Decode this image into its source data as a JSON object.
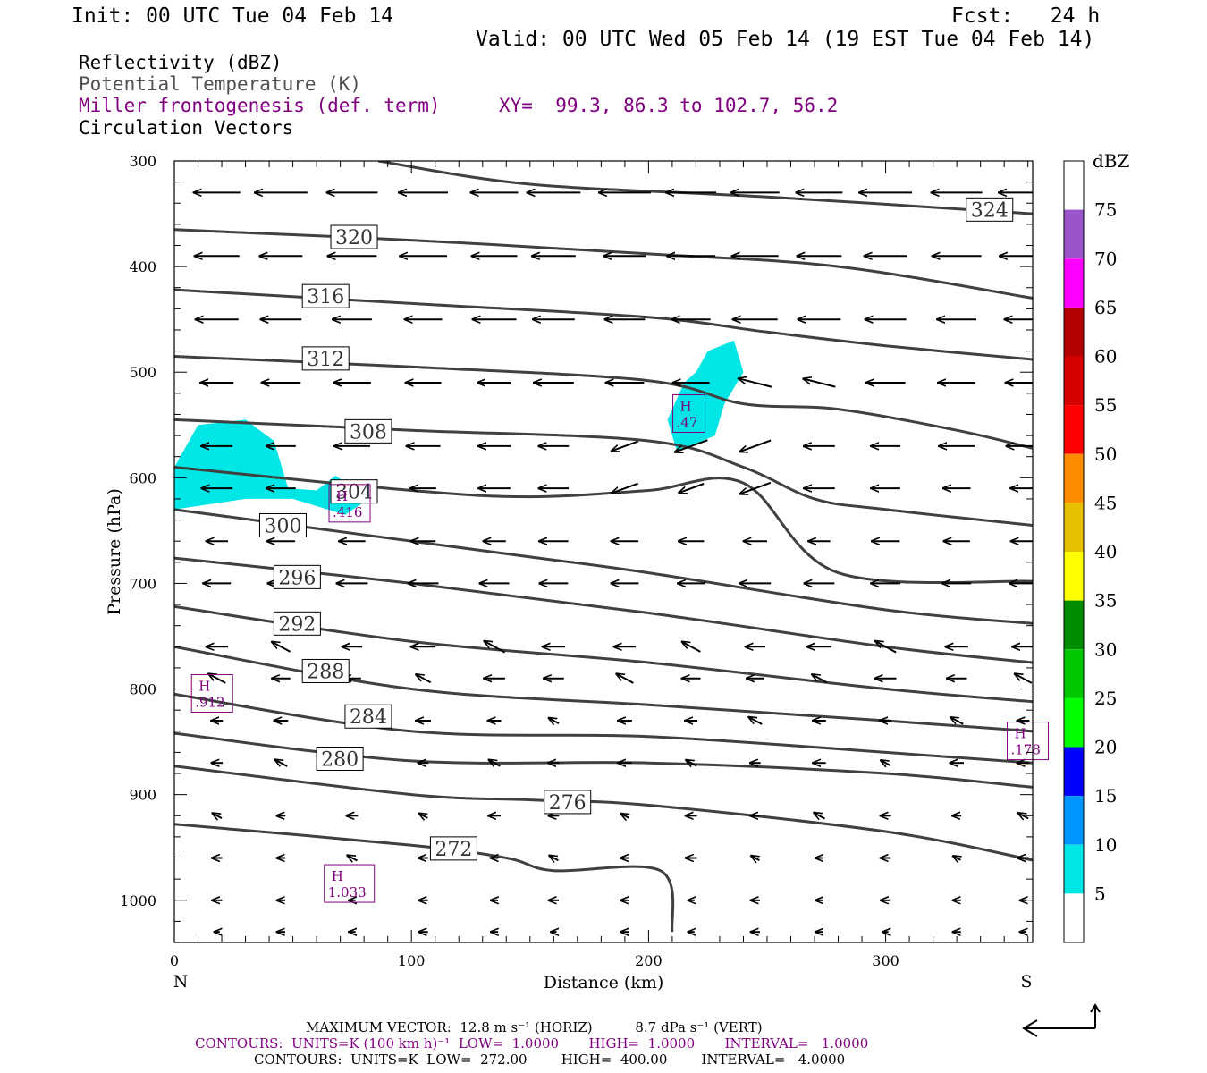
{
  "header": {
    "init": "Init: 00 UTC Tue 04 Feb 14",
    "fcst": "Fcst:   24 h",
    "valid": "Valid: 00 UTC Wed 05 Feb 14 (19 EST Tue 04 Feb 14)"
  },
  "legend": {
    "reflectivity": "Reflectivity (dBZ)",
    "theta": "Potential Temperature (K)",
    "frontogenesis": "Miller frontogenesis (def. term)",
    "xy": "XY=  99.3, 86.3 to 102.7, 56.2",
    "vectors": "Circulation Vectors"
  },
  "colors": {
    "theta_contour": "#404040",
    "frontogenesis": "#800080",
    "reflectivity_5": "#00e5e5"
  },
  "chart_data": {
    "type": "contour",
    "xlabel": "Distance (km)",
    "ylabel": "Pressure (hPa)",
    "xlim": [
      0,
      362
    ],
    "ylim": [
      1040,
      300
    ],
    "x_ticks": [
      0,
      100,
      200,
      300
    ],
    "y_ticks": [
      300,
      400,
      500,
      600,
      700,
      800,
      900,
      1000
    ],
    "left_end_label": "N",
    "right_end_label": "S",
    "theta_contours": [
      {
        "level": 324,
        "label": "324",
        "label_at": [
          334,
          346
        ],
        "points": [
          [
            86,
            300
          ],
          [
            150,
            322
          ],
          [
            250,
            334
          ],
          [
            362,
            350
          ]
        ]
      },
      {
        "level": 320,
        "label": "320",
        "label_at": [
          66,
          372
        ],
        "points": [
          [
            0,
            365
          ],
          [
            100,
            375
          ],
          [
            200,
            388
          ],
          [
            280,
            400
          ],
          [
            362,
            430
          ]
        ]
      },
      {
        "level": 316,
        "label": "316",
        "label_at": [
          54,
          428
        ],
        "points": [
          [
            0,
            422
          ],
          [
            100,
            435
          ],
          [
            200,
            448
          ],
          [
            250,
            462
          ],
          [
            300,
            475
          ],
          [
            362,
            488
          ]
        ]
      },
      {
        "level": 312,
        "label": "312",
        "label_at": [
          54,
          487
        ],
        "points": [
          [
            0,
            485
          ],
          [
            100,
            495
          ],
          [
            200,
            508
          ],
          [
            240,
            530
          ],
          [
            280,
            535
          ],
          [
            330,
            555
          ],
          [
            362,
            572
          ]
        ]
      },
      {
        "level": 308,
        "label": "308",
        "label_at": [
          72,
          556
        ],
        "points": [
          [
            0,
            545
          ],
          [
            100,
            555
          ],
          [
            200,
            565
          ],
          [
            240,
            590
          ],
          [
            270,
            620
          ],
          [
            300,
            630
          ],
          [
            362,
            645
          ]
        ]
      },
      {
        "level": 304,
        "label": "304",
        "label_at": [
          66,
          613
        ],
        "points": [
          [
            0,
            590
          ],
          [
            100,
            612
          ],
          [
            150,
            618
          ],
          [
            200,
            612
          ],
          [
            240,
            605
          ],
          [
            280,
            690
          ],
          [
            362,
            698
          ]
        ]
      },
      {
        "level": 300,
        "label": "300",
        "label_at": [
          36,
          645
        ],
        "points": [
          [
            0,
            630
          ],
          [
            100,
            660
          ],
          [
            150,
            675
          ],
          [
            200,
            690
          ],
          [
            300,
            725
          ],
          [
            362,
            738
          ]
        ]
      },
      {
        "level": 296,
        "label": "296",
        "label_at": [
          42,
          694
        ],
        "points": [
          [
            0,
            676
          ],
          [
            100,
            700
          ],
          [
            200,
            728
          ],
          [
            300,
            760
          ],
          [
            362,
            775
          ]
        ]
      },
      {
        "level": 292,
        "label": "292",
        "label_at": [
          42,
          738
        ],
        "points": [
          [
            0,
            722
          ],
          [
            100,
            755
          ],
          [
            200,
            775
          ],
          [
            300,
            800
          ],
          [
            362,
            812
          ]
        ]
      },
      {
        "level": 288,
        "label": "288",
        "label_at": [
          54,
          783
        ],
        "points": [
          [
            0,
            760
          ],
          [
            100,
            800
          ],
          [
            200,
            815
          ],
          [
            300,
            830
          ],
          [
            362,
            840
          ]
        ]
      },
      {
        "level": 284,
        "label": "284",
        "label_at": [
          72,
          826
        ],
        "points": [
          [
            0,
            805
          ],
          [
            100,
            840
          ],
          [
            200,
            845
          ],
          [
            300,
            860
          ],
          [
            362,
            870
          ]
        ]
      },
      {
        "level": 280,
        "label": "280",
        "label_at": [
          60,
          866
        ],
        "points": [
          [
            0,
            842
          ],
          [
            100,
            868
          ],
          [
            200,
            870
          ],
          [
            300,
            880
          ],
          [
            362,
            893
          ]
        ]
      },
      {
        "level": 276,
        "label": "276",
        "label_at": [
          156,
          907
        ],
        "points": [
          [
            0,
            873
          ],
          [
            100,
            900
          ],
          [
            150,
            905
          ],
          [
            200,
            910
          ],
          [
            300,
            935
          ],
          [
            362,
            962
          ]
        ]
      },
      {
        "level": 272,
        "label": "272",
        "label_at": [
          108,
          951
        ],
        "points": [
          [
            0,
            928
          ],
          [
            100,
            948
          ],
          [
            140,
            960
          ],
          [
            160,
            972
          ],
          [
            205,
            972
          ],
          [
            210,
            1030
          ]
        ]
      }
    ],
    "reflectivity_areas": [
      {
        "dbz_min": 5,
        "outline": [
          [
            0,
            590
          ],
          [
            10,
            550
          ],
          [
            30,
            545
          ],
          [
            42,
            565
          ],
          [
            48,
            610
          ],
          [
            60,
            612
          ],
          [
            68,
            598
          ],
          [
            82,
            620
          ],
          [
            72,
            635
          ],
          [
            50,
            620
          ],
          [
            30,
            620
          ],
          [
            0,
            630
          ]
        ]
      },
      {
        "dbz_min": 5,
        "outline": [
          [
            220,
            500
          ],
          [
            225,
            480
          ],
          [
            236,
            470
          ],
          [
            240,
            500
          ],
          [
            232,
            530
          ],
          [
            228,
            560
          ],
          [
            212,
            575
          ],
          [
            208,
            545
          ],
          [
            215,
            510
          ]
        ]
      }
    ],
    "frontogenesis_maxima": [
      {
        "label": "H",
        "value": ".47",
        "at": [
          211,
          540
        ]
      },
      {
        "label": "H",
        "value": ".416",
        "at": [
          66,
          625
        ]
      },
      {
        "label": "H",
        "value": ".912",
        "at": [
          8,
          805
        ]
      },
      {
        "label": "H",
        "value": ".178",
        "at": [
          352,
          850
        ]
      },
      {
        "label": "H",
        "value": "1.033",
        "at": [
          64,
          985
        ]
      }
    ],
    "colorbar": {
      "unit": "dBZ",
      "levels": [
        5,
        10,
        15,
        20,
        25,
        30,
        35,
        40,
        45,
        50,
        55,
        60,
        65,
        70,
        75
      ],
      "colors": [
        "#00e5e5",
        "#0096ff",
        "#0000ff",
        "#00ff00",
        "#00c800",
        "#008c00",
        "#ffff00",
        "#e5bf00",
        "#ff8c00",
        "#ff0000",
        "#d70000",
        "#b40000",
        "#ff00ff",
        "#9955c9",
        "#ffffff"
      ]
    }
  },
  "footer": {
    "max_vector": "MAXIMUM VECTOR:  12.8 m s⁻¹ (HORIZ)          8.7 dPa s⁻¹ (VERT)",
    "contours_1": "CONTOURS:  UNITS=K (100 km h)⁻¹  LOW=  1.0000       HIGH=  1.0000       INTERVAL=   1.0000",
    "contours_2": "CONTOURS:  UNITS=K  LOW=  272.00        HIGH=  400.00        INTERVAL=   4.0000"
  }
}
